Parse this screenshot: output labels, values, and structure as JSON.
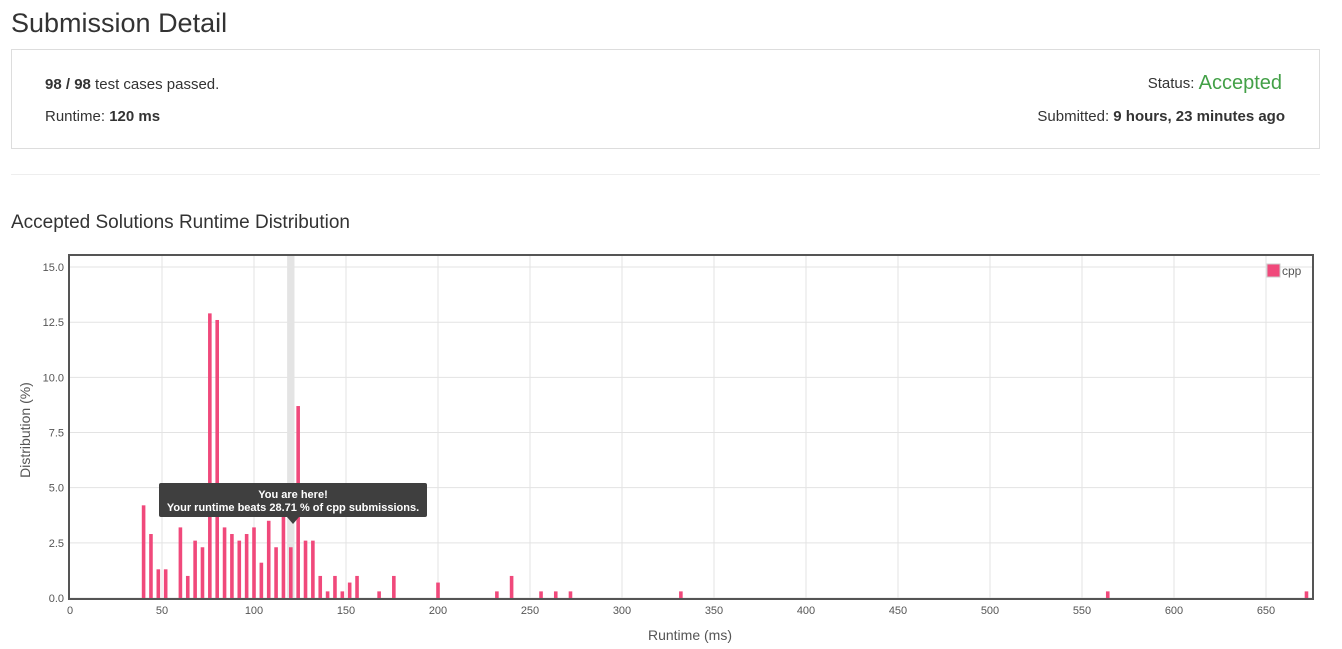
{
  "page": {
    "title": "Submission Detail"
  },
  "summary": {
    "passed": "98",
    "separator": " / ",
    "total": "98",
    "passed_suffix": " test cases passed.",
    "runtime_label": "Runtime: ",
    "runtime_value": "120 ms",
    "status_label": "Status: ",
    "status_value": "Accepted",
    "submitted_label": "Submitted: ",
    "submitted_value": "9 hours, 23 minutes ago"
  },
  "distribution": {
    "title": "Accepted Solutions Runtime Distribution",
    "tooltip_line1": "You are here!",
    "tooltip_line2": "Your runtime beats 28.71 % of cpp submissions."
  },
  "colors": {
    "bar": "#f0497b",
    "accepted": "#43a047",
    "highlight": "#e4e4e4",
    "tooltip_bg": "#3f3f3f"
  },
  "chart_data": {
    "type": "bar",
    "xlabel": "Runtime (ms)",
    "ylabel": "Distribution (%)",
    "xlim": [
      0,
      675
    ],
    "ylim": [
      0,
      15.5
    ],
    "xticks": [
      0,
      50,
      100,
      150,
      200,
      250,
      300,
      350,
      400,
      450,
      500,
      550,
      600,
      650
    ],
    "yticks": [
      0.0,
      2.5,
      5.0,
      7.5,
      10.0,
      12.5,
      15.0
    ],
    "ytick_labels": [
      "0.0",
      "2.5",
      "5.0",
      "7.5",
      "10.0",
      "12.5",
      "15.0"
    ],
    "grid": true,
    "legend_position": "top-right",
    "highlight_x": 120,
    "series": [
      {
        "name": "cpp",
        "x": [
          40,
          44,
          48,
          52,
          60,
          64,
          68,
          72,
          76,
          80,
          84,
          88,
          92,
          96,
          100,
          104,
          108,
          112,
          116,
          120,
          124,
          128,
          132,
          136,
          140,
          144,
          148,
          152,
          156,
          168,
          176,
          200,
          232,
          240,
          256,
          264,
          272,
          332,
          564,
          672
        ],
        "values": [
          4.2,
          2.9,
          1.3,
          1.3,
          3.2,
          1.0,
          2.6,
          2.3,
          12.9,
          12.6,
          3.2,
          2.9,
          2.6,
          2.9,
          3.2,
          1.6,
          3.5,
          2.3,
          3.9,
          2.3,
          8.7,
          2.6,
          2.6,
          1.0,
          0.3,
          1.0,
          0.3,
          0.7,
          1.0,
          0.3,
          1.0,
          0.7,
          0.3,
          1.0,
          0.3,
          0.3,
          0.3,
          0.3,
          0.3,
          0.3
        ]
      }
    ]
  }
}
